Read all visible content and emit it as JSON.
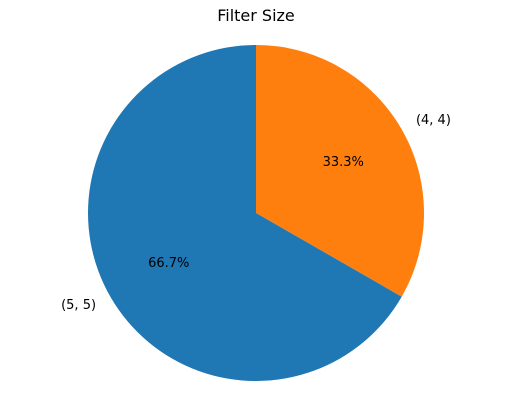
{
  "chart_data": {
    "type": "pie",
    "title": "Filter Size",
    "categories": [
      "(4, 4)",
      "(5, 5)"
    ],
    "values": [
      33.3,
      66.7
    ],
    "percent_labels": [
      "33.3%",
      "66.7%"
    ],
    "colors": [
      "#ff7f0e",
      "#1f77b4"
    ],
    "start_angle_deg": 90,
    "direction": "clockwise"
  }
}
